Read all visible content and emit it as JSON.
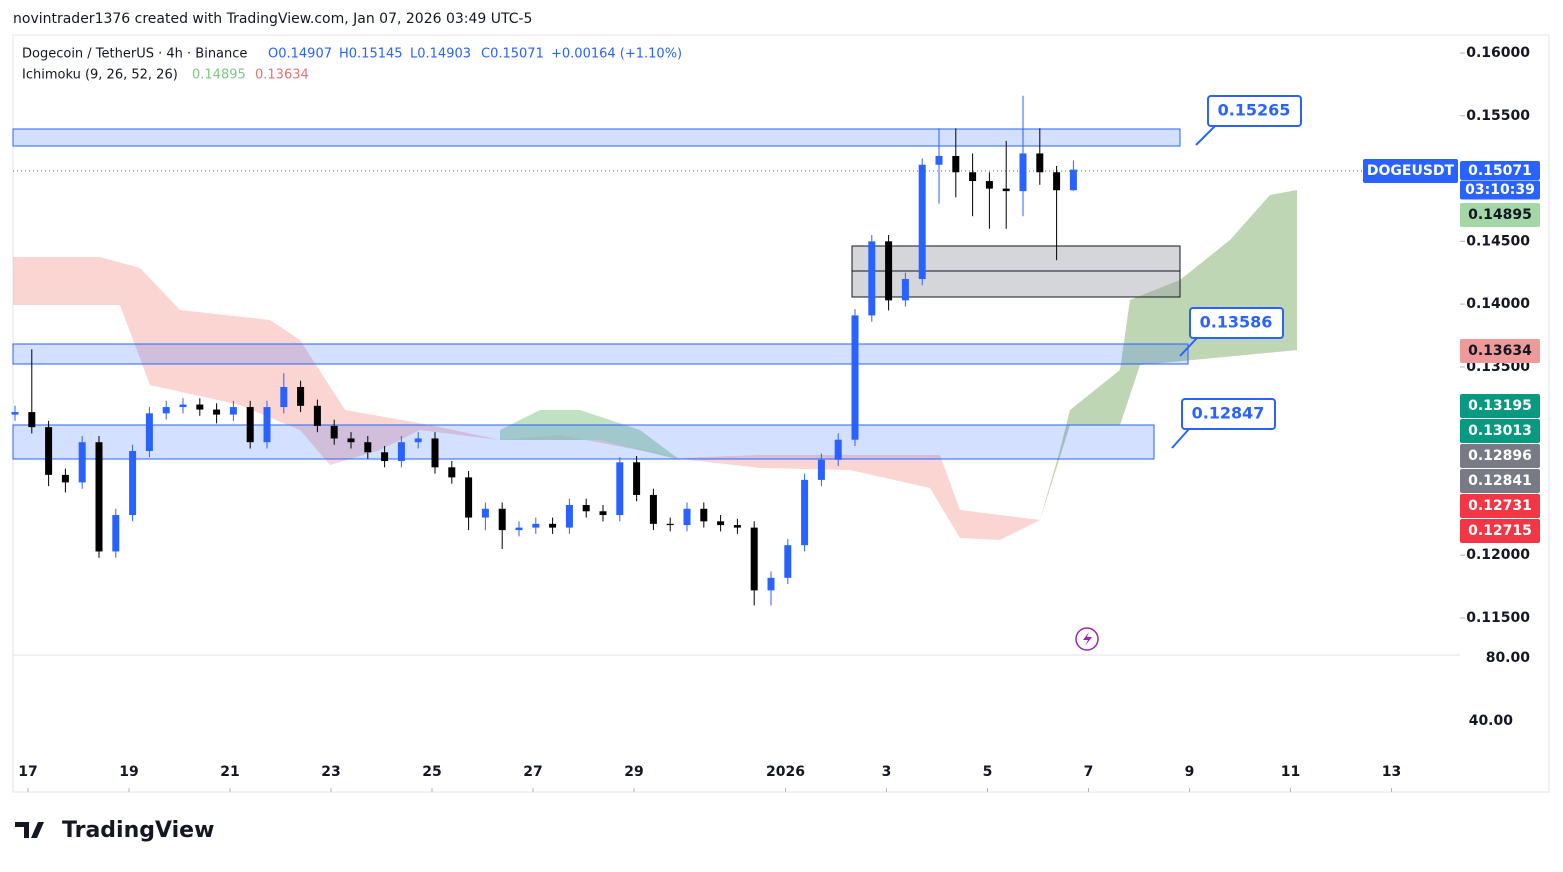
{
  "header": {
    "author": "novintrader1376 created with TradingView.com, Jan 07, 2026 03:49 UTC-5",
    "symbol": "Dogecoin / TetherUS · 4h · Binance",
    "ohlc": [
      "O0.14907",
      "H0.15145",
      "L0.14903",
      "C0.15071",
      "+0.00164 (+1.10%)"
    ],
    "indicator": "Ichimoku (9, 26, 52, 26)",
    "indicator_values": [
      "0.14895",
      "0.13634"
    ],
    "logo": "TradingView"
  },
  "chart_data": {
    "type": "candlestick",
    "up_color": "#2962ff",
    "down_color": "#000000",
    "open": [
      0.1312,
      0.1314,
      0.1302,
      0.1264,
      0.1258,
      0.129,
      0.1203,
      0.1232,
      0.1283,
      0.1313,
      0.1318,
      0.132,
      0.1316,
      0.1312,
      0.1318,
      0.129,
      0.1318,
      0.1334,
      0.1319,
      0.1303,
      0.1293,
      0.129,
      0.1282,
      0.1275,
      0.129,
      0.1293,
      0.127,
      0.1262,
      0.123,
      0.1237,
      0.122,
      0.1222,
      0.1225,
      0.1222,
      0.124,
      0.1235,
      0.1232,
      0.1274,
      0.1248,
      0.1225,
      0.1224,
      0.1237,
      0.1227,
      0.1224,
      0.1222,
      0.1172,
      0.1182,
      0.1208,
      0.126,
      0.1276,
      0.1292,
      0.1391,
      0.145,
      0.1403,
      0.142,
      0.1511,
      0.1518,
      0.1505,
      0.1498,
      0.1492,
      0.149,
      0.152,
      0.1505,
      0.14907
    ],
    "high": [
      0.1319,
      0.1364,
      0.1307,
      0.1269,
      0.1295,
      0.1295,
      0.1237,
      0.1288,
      0.1318,
      0.1323,
      0.1325,
      0.1325,
      0.1321,
      0.1323,
      0.1323,
      0.1323,
      0.1345,
      0.1339,
      0.1324,
      0.1308,
      0.1298,
      0.1295,
      0.1287,
      0.1295,
      0.1298,
      0.1298,
      0.1275,
      0.1267,
      0.1242,
      0.1242,
      0.1227,
      0.123,
      0.123,
      0.1245,
      0.1245,
      0.124,
      0.1278,
      0.1279,
      0.1253,
      0.123,
      0.1242,
      0.1242,
      0.1232,
      0.1229,
      0.1227,
      0.1187,
      0.1213,
      0.1265,
      0.1281,
      0.1297,
      0.1396,
      0.1455,
      0.1455,
      0.1425,
      0.1516,
      0.154,
      0.154,
      0.152,
      0.1505,
      0.153,
      0.1566,
      0.154,
      0.151,
      0.15145
    ],
    "low": [
      0.1307,
      0.1297,
      0.1255,
      0.125,
      0.1253,
      0.1198,
      0.1198,
      0.1227,
      0.1278,
      0.1308,
      0.1313,
      0.1311,
      0.1305,
      0.1307,
      0.1285,
      0.1285,
      0.1313,
      0.1314,
      0.1298,
      0.1288,
      0.1285,
      0.1277,
      0.127,
      0.127,
      0.1285,
      0.1265,
      0.1257,
      0.122,
      0.122,
      0.1205,
      0.1215,
      0.1217,
      0.1217,
      0.1217,
      0.123,
      0.1227,
      0.1227,
      0.1243,
      0.122,
      0.1219,
      0.1219,
      0.1222,
      0.1219,
      0.1217,
      0.116,
      0.116,
      0.1177,
      0.1203,
      0.1255,
      0.1271,
      0.1287,
      0.1386,
      0.1395,
      0.1398,
      0.1415,
      0.148,
      0.1485,
      0.147,
      0.146,
      0.146,
      0.147,
      0.1495,
      0.1435,
      0.14903
    ],
    "close": [
      0.1314,
      0.1302,
      0.1264,
      0.1258,
      0.129,
      0.1203,
      0.1232,
      0.1283,
      0.1313,
      0.1318,
      0.132,
      0.1316,
      0.1312,
      0.1318,
      0.129,
      0.1318,
      0.1334,
      0.1319,
      0.1303,
      0.1293,
      0.129,
      0.1282,
      0.1275,
      0.129,
      0.1293,
      0.127,
      0.1262,
      0.123,
      0.1237,
      0.122,
      0.1222,
      0.1225,
      0.1222,
      0.124,
      0.1235,
      0.1232,
      0.1274,
      0.1248,
      0.1225,
      0.1224,
      0.1237,
      0.1227,
      0.1224,
      0.1222,
      0.1172,
      0.1182,
      0.1208,
      0.126,
      0.1276,
      0.1292,
      0.1391,
      0.145,
      0.1403,
      0.142,
      0.1511,
      0.1518,
      0.1505,
      0.1498,
      0.1492,
      0.149,
      0.152,
      0.1505,
      0.14907,
      0.15071
    ],
    "ylim": [
      0.1148,
      0.1607
    ],
    "yticks": [
      {
        "value": 0.16,
        "label": "0.16000"
      },
      {
        "value": 0.155,
        "label": "0.15500"
      },
      {
        "value": 0.145,
        "label": "0.14500"
      },
      {
        "value": 0.14,
        "label": "0.14000"
      },
      {
        "value": 0.135,
        "label": "0.13500"
      },
      {
        "value": 0.12,
        "label": "0.12000"
      },
      {
        "value": 0.115,
        "label": "0.11500"
      }
    ],
    "xticks": [
      {
        "value": 0,
        "label": "17"
      },
      {
        "value": 2,
        "label": "19"
      },
      {
        "value": 4,
        "label": "21"
      },
      {
        "value": 6,
        "label": "23"
      },
      {
        "value": 8,
        "label": "25"
      },
      {
        "value": 10,
        "label": "27"
      },
      {
        "value": 12,
        "label": "29"
      },
      {
        "value": 15,
        "label": "2026"
      },
      {
        "value": 17,
        "label": "3"
      },
      {
        "value": 19,
        "label": "5"
      },
      {
        "value": 21,
        "label": "7"
      },
      {
        "value": 23,
        "label": "9"
      },
      {
        "value": 25,
        "label": "11"
      },
      {
        "value": 27,
        "label": "13"
      }
    ],
    "oscillator_ticks": [
      "80.00",
      "40.00"
    ],
    "annotations": [
      "0.15265",
      "0.13586",
      "0.12847"
    ],
    "price_badges": [
      {
        "label": "DOGEUSDT",
        "color": "#2962ff"
      },
      {
        "label": "0.15071",
        "color": "#2962ff"
      },
      {
        "label": "03:10:39",
        "color": "#2962ff"
      },
      {
        "label": "0.14895",
        "color": "#a5d6a7"
      },
      {
        "label": "0.13634",
        "color": "#ef9a9a"
      },
      {
        "label": "0.13195",
        "color": "#089981"
      },
      {
        "label": "0.13013",
        "color": "#089981"
      },
      {
        "label": "0.12896",
        "color": "#787b86"
      },
      {
        "label": "0.12841",
        "color": "#787b86"
      },
      {
        "label": "0.12731",
        "color": "#f23645"
      },
      {
        "label": "0.12715",
        "color": "#f23645"
      }
    ]
  }
}
